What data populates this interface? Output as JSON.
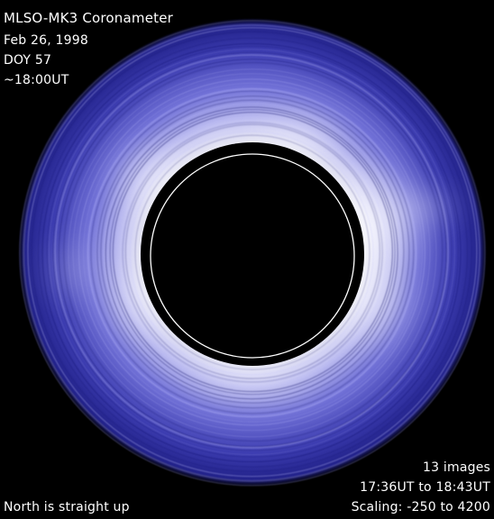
{
  "header": {
    "instrument": "MLSO-MK3 Coronameter",
    "date": "Feb 26, 1998",
    "doy": "DOY  57",
    "time": "~18:00UT"
  },
  "footer": {
    "orientation": "North is straight up",
    "image_count": "13 images",
    "time_range": "17:36UT to 18:43UT",
    "scaling": "Scaling: -250 to 4200"
  },
  "colors": {
    "background": "#000000",
    "corona_outer": "#2a2a9a",
    "corona_mid": "#5a5ad0",
    "corona_bright": "#ffffff",
    "occulter": "#000000",
    "limb_circle": "#ffffff",
    "text": "#ffffff"
  }
}
